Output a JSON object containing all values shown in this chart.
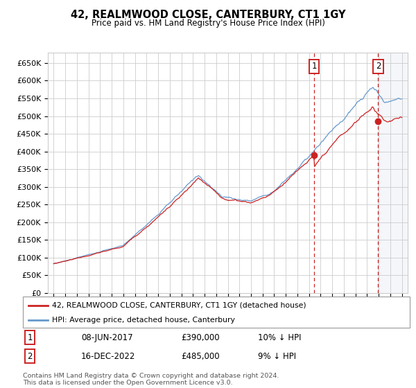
{
  "title": "42, REALMWOOD CLOSE, CANTERBURY, CT1 1GY",
  "subtitle": "Price paid vs. HM Land Registry's House Price Index (HPI)",
  "ylabel_ticks": [
    "£0",
    "£50K",
    "£100K",
    "£150K",
    "£200K",
    "£250K",
    "£300K",
    "£350K",
    "£400K",
    "£450K",
    "£500K",
    "£550K",
    "£600K",
    "£650K"
  ],
  "ytick_values": [
    0,
    50000,
    100000,
    150000,
    200000,
    250000,
    300000,
    350000,
    400000,
    450000,
    500000,
    550000,
    600000,
    650000
  ],
  "ylim": [
    0,
    680000
  ],
  "xlim_start": 1994.5,
  "xlim_end": 2025.5,
  "hpi_color": "#6699cc",
  "price_color": "#cc2222",
  "marker1_date": 2017.44,
  "marker1_price": 390000,
  "marker1_label": "1",
  "marker1_date_str": "08-JUN-2017",
  "marker1_price_str": "£390,000",
  "marker1_note": "10% ↓ HPI",
  "marker2_date": 2022.96,
  "marker2_price": 485000,
  "marker2_label": "2",
  "marker2_date_str": "16-DEC-2022",
  "marker2_price_str": "£485,000",
  "marker2_note": "9% ↓ HPI",
  "legend_line1": "42, REALMWOOD CLOSE, CANTERBURY, CT1 1GY (detached house)",
  "legend_line2": "HPI: Average price, detached house, Canterbury",
  "footer": "Contains HM Land Registry data © Crown copyright and database right 2024.\nThis data is licensed under the Open Government Licence v3.0.",
  "background_color": "#ffffff",
  "grid_color": "#cccccc",
  "highlight_color": "#ddeeff"
}
